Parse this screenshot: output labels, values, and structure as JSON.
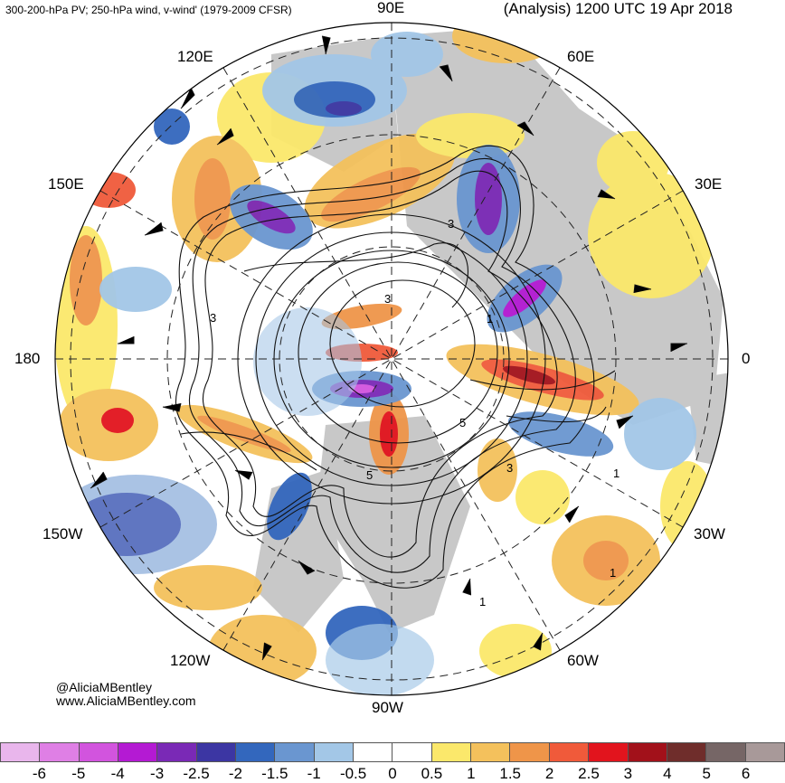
{
  "header": {
    "left": "300-200-hPa PV; 250-hPa wind, v-wind' (1979-2009 CFSR)",
    "right": "(Analysis) 1200 UTC 19 Apr 2018"
  },
  "longitude_labels": {
    "lon_90e": "90E",
    "lon_60e": "60E",
    "lon_120e": "120E",
    "lon_30e": "30E",
    "lon_150e": "150E",
    "lon_180": "180",
    "lon_0": "0",
    "lon_150w": "150W",
    "lon_30w": "30W",
    "lon_120w": "120W",
    "lon_60w": "60W",
    "lon_90w": "90W"
  },
  "contour_labels": [
    "3",
    "3",
    "3",
    "3",
    "5",
    "5",
    "1",
    "1",
    "1",
    "1"
  ],
  "credits": {
    "twitter": "@AliciaMBentley",
    "website": "www.AliciaMBentley.com"
  },
  "colorbar": {
    "colors": [
      "#e9b6ec",
      "#df7fe5",
      "#d254de",
      "#b41ad3",
      "#7a29b6",
      "#3c36a3",
      "#3367bd",
      "#6a96d0",
      "#a3c7e7",
      "#ffffff",
      "#ffffff",
      "#fbe86b",
      "#f4c15c",
      "#ef9549",
      "#f05a3a",
      "#e2141d",
      "#a2111a",
      "#6f2d2b",
      "#766666",
      "#a89999"
    ],
    "ticks": [
      "-6",
      "-5",
      "-4",
      "-3",
      "-2.5",
      "-2",
      "-1.5",
      "-1",
      "-0.5",
      "0",
      "0.5",
      "1",
      "1.5",
      "2",
      "2.5",
      "3",
      "4",
      "5",
      "6"
    ]
  }
}
